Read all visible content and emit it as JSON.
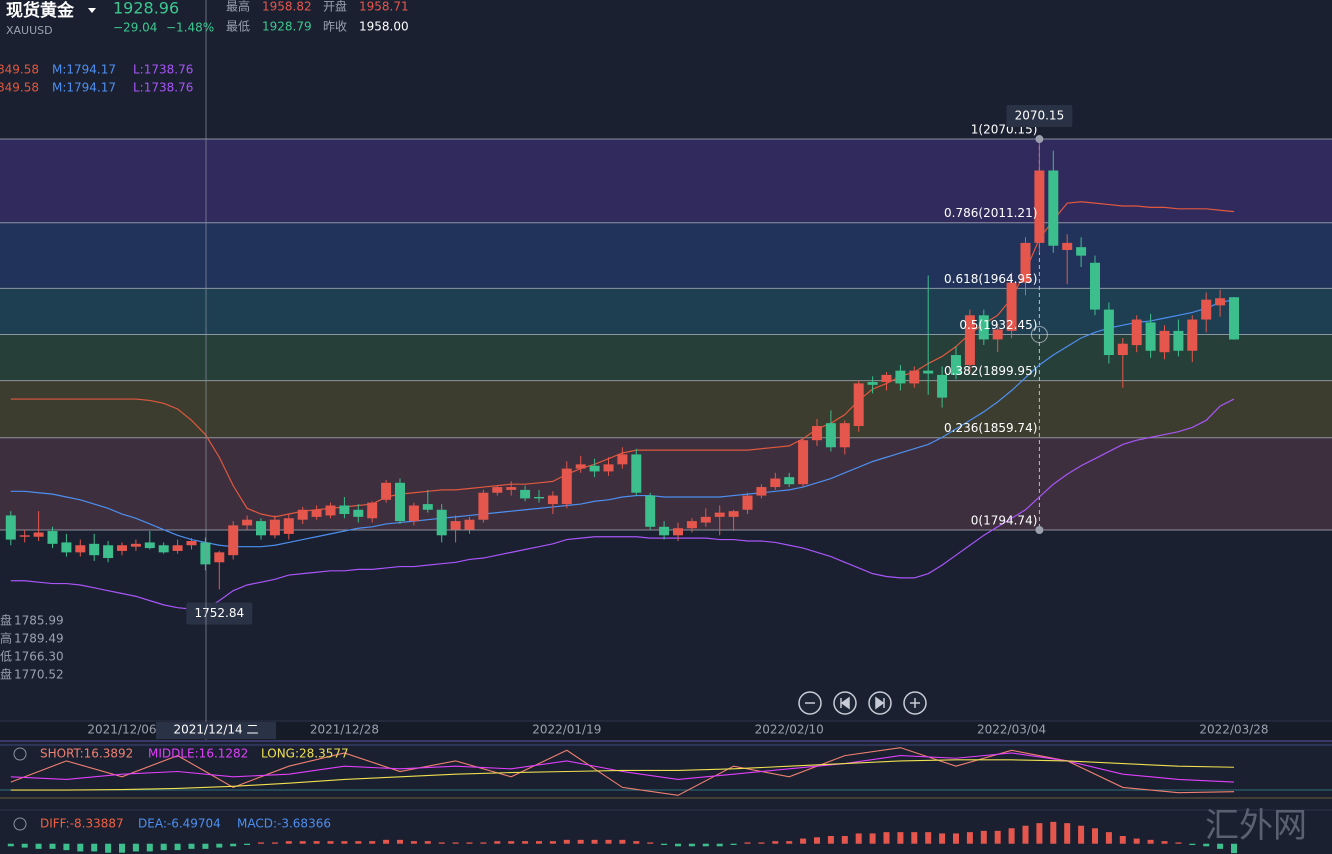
{
  "header": {
    "name": "现货黄金",
    "symbol": "XAUUSD",
    "price": "1928.96",
    "change": "−29.04",
    "change_pct": "−1.48%",
    "stats": [
      {
        "label": "最高",
        "value": "1958.82"
      },
      {
        "label": "开盘",
        "value": "1958.71"
      },
      {
        "label": "最低",
        "value": "1928.79"
      },
      {
        "label": "昨收",
        "value": "1958.00"
      }
    ]
  },
  "band_legend": [
    [
      "849.58",
      "M:1794.17",
      "L:1738.76"
    ],
    [
      "849.58",
      "M:1794.17",
      "L:1738.76"
    ]
  ],
  "ohlc_info": [
    {
      "label": "盘",
      "value": "1785.99"
    },
    {
      "label": "高",
      "value": "1789.49"
    },
    {
      "label": "低",
      "value": "1766.30"
    },
    {
      "label": "盘",
      "value": "1770.52"
    }
  ],
  "crosshair_date": "2021/12/14 二",
  "watermark": "汇外网",
  "chart_data": [
    {
      "type": "candlestick",
      "categories": [
        null,
        null,
        null,
        null,
        null,
        null,
        null,
        null,
        "2021/12/06",
        null,
        null,
        null,
        null,
        null,
        null,
        null,
        null,
        null,
        null,
        null,
        null,
        null,
        null,
        null,
        "2021/12/28",
        null,
        null,
        null,
        null,
        null,
        null,
        null,
        null,
        null,
        null,
        null,
        null,
        null,
        null,
        null,
        "2022/01/19",
        null,
        null,
        null,
        null,
        null,
        null,
        null,
        null,
        null,
        null,
        null,
        null,
        null,
        null,
        null,
        "2022/02/10",
        null,
        null,
        null,
        null,
        null,
        null,
        null,
        null,
        null,
        null,
        null,
        null,
        null,
        null,
        null,
        "2022/03/04",
        null,
        null,
        null,
        null,
        null,
        null,
        null,
        null,
        null,
        null,
        null,
        null,
        null,
        null,
        null,
        "2022/03/28"
      ],
      "open": [
        1805,
        1790,
        1790,
        1794,
        1786,
        1779,
        1785,
        1784,
        1780,
        1783,
        1786,
        1784,
        1780,
        1784,
        1785.99,
        1772,
        1777,
        1798,
        1801,
        1791,
        1792,
        1802,
        1804,
        1805,
        1812,
        1809,
        1803,
        1816,
        1828,
        1801,
        1813,
        1809,
        1795,
        1795,
        1802,
        1821,
        1823,
        1823,
        1818,
        1813,
        1813,
        1838,
        1840,
        1836,
        1841,
        1848,
        1819,
        1797,
        1791,
        1796,
        1800,
        1804,
        1804,
        1809,
        1819,
        1825,
        1832,
        1827,
        1858,
        1870,
        1853,
        1868,
        1899,
        1899,
        1907,
        1898,
        1907,
        1904,
        1918,
        1911,
        1946,
        1929,
        1935,
        1969,
        1997,
        2048,
        1992,
        1994,
        1983,
        1950,
        1918,
        1925,
        1941,
        1920,
        1935,
        1921,
        1943,
        1953,
        1958.71
      ],
      "high": [
        1808,
        1795,
        1808,
        1797,
        1792,
        1788,
        1792,
        1787,
        1786,
        1788,
        1794,
        1786,
        1788,
        1789,
        1789.49,
        1780,
        1801,
        1805,
        1803,
        1805,
        1806,
        1811,
        1812,
        1814,
        1818,
        1813,
        1815,
        1830,
        1831,
        1814,
        1823,
        1813,
        1805,
        1804,
        1823,
        1826,
        1829,
        1826,
        1823,
        1822,
        1843,
        1847,
        1845,
        1846,
        1853,
        1852,
        1821,
        1801,
        1800,
        1803,
        1810,
        1812,
        1809,
        1821,
        1827,
        1835,
        1835,
        1859,
        1873,
        1879,
        1872,
        1900,
        1903,
        1906,
        1911,
        1910,
        1974,
        1910,
        1924,
        1950,
        1950,
        1940,
        1976,
        2001,
        2070.15,
        2062,
        2003,
        2001,
        1988,
        1955,
        1930,
        1946,
        1947,
        1939,
        1943,
        1946,
        1962,
        1964,
        1958.82
      ],
      "low": [
        1784,
        1786,
        1787,
        1782,
        1776,
        1776,
        1773,
        1772,
        1777,
        1780,
        1781,
        1778,
        1778,
        1781,
        1766.3,
        1752.84,
        1774,
        1795,
        1788,
        1789,
        1788,
        1799,
        1802,
        1803,
        1803,
        1800,
        1800,
        1814,
        1799,
        1798,
        1807,
        1786,
        1786,
        1792,
        1800,
        1819,
        1819,
        1815,
        1814,
        1806,
        1810,
        1835,
        1832,
        1833,
        1838,
        1819,
        1795,
        1788,
        1787,
        1793,
        1797,
        1791,
        1794,
        1806,
        1817,
        1823,
        1825,
        1825,
        1854,
        1850,
        1848,
        1864,
        1891,
        1893,
        1893,
        1895,
        1890,
        1881,
        1901,
        1906,
        1925,
        1920,
        1930,
        1960,
        1990,
        1990,
        1968,
        1980,
        1946,
        1912,
        1895,
        1920,
        1916,
        1915,
        1917,
        1913,
        1934,
        1945,
        1928.79
      ],
      "close": [
        1788,
        1791,
        1793,
        1785,
        1779,
        1784,
        1777,
        1775,
        1784,
        1785,
        1782,
        1779,
        1784,
        1787,
        1770.52,
        1779,
        1798,
        1802,
        1791,
        1802,
        1803,
        1809,
        1809,
        1812,
        1806,
        1804,
        1814,
        1828,
        1801,
        1812,
        1809,
        1791,
        1801,
        1802,
        1821,
        1825,
        1825,
        1817,
        1817,
        1819,
        1838,
        1841,
        1836,
        1841,
        1848,
        1821,
        1797,
        1791,
        1796,
        1801,
        1804,
        1807,
        1808,
        1819,
        1825,
        1831,
        1827,
        1858,
        1868,
        1853,
        1870,
        1898,
        1897,
        1904,
        1898,
        1907,
        1905,
        1888,
        1904,
        1946,
        1929,
        1936,
        1969,
        1997,
        2048,
        1995,
        1997,
        1988,
        1950,
        1918,
        1926,
        1943,
        1921,
        1935,
        1921,
        1943,
        1957,
        1958,
        1928.96
      ],
      "up_color": "#e5574d",
      "down_color": "#3cbf8c",
      "lines": [
        {
          "color": "#e0583e",
          "values": [
            1887,
            1887,
            1887,
            1887,
            1887,
            1887,
            1887,
            1887,
            1887,
            1887,
            1886,
            1884,
            1880,
            1872,
            1862,
            1846,
            1826,
            1810,
            1806,
            1804,
            1806,
            1808,
            1809,
            1810,
            1811,
            1812,
            1813,
            1818,
            1820,
            1821,
            1822,
            1823,
            1823,
            1824,
            1825,
            1826,
            1827,
            1827,
            1828,
            1829,
            1834,
            1838,
            1841,
            1845,
            1849,
            1851,
            1851,
            1851,
            1851,
            1851,
            1851,
            1851,
            1851,
            1851,
            1852,
            1853,
            1854,
            1859,
            1866,
            1870,
            1876,
            1886,
            1894,
            1898,
            1903,
            1906,
            1912,
            1917,
            1924,
            1933,
            1940,
            1946,
            1958,
            1977,
            2000,
            2013,
            2025,
            2026,
            2025,
            2024,
            2023,
            2023,
            2022,
            2022,
            2021,
            2021,
            2021,
            2020,
            2019
          ]
        },
        {
          "color": "#4d8ff0",
          "values": [
            1822,
            1822,
            1821,
            1820,
            1818,
            1816,
            1813,
            1810,
            1806,
            1803,
            1799,
            1795,
            1791,
            1788,
            1786,
            1784,
            1783,
            1783,
            1783,
            1784,
            1786,
            1788,
            1790,
            1792,
            1794,
            1796,
            1797,
            1799,
            1800,
            1801,
            1802,
            1803,
            1804,
            1805,
            1806,
            1807,
            1808,
            1809,
            1810,
            1811,
            1812,
            1813,
            1815,
            1816,
            1818,
            1819,
            1819,
            1818,
            1818,
            1818,
            1818,
            1818,
            1819,
            1820,
            1821,
            1822,
            1823,
            1825,
            1828,
            1831,
            1835,
            1839,
            1843,
            1846,
            1849,
            1852,
            1855,
            1860,
            1866,
            1872,
            1878,
            1885,
            1893,
            1902,
            1911,
            1918,
            1924,
            1930,
            1934,
            1937,
            1939,
            1941,
            1942,
            1944,
            1946,
            1948,
            1951,
            1955,
            1957
          ]
        },
        {
          "color": "#a855f7",
          "values": [
            1759,
            1759,
            1758,
            1757,
            1757,
            1756,
            1754,
            1752,
            1750,
            1748,
            1745,
            1742,
            1740,
            1739,
            1739,
            1745,
            1752,
            1756,
            1758,
            1760,
            1763,
            1764,
            1765,
            1766,
            1766,
            1767,
            1767,
            1768,
            1769,
            1769,
            1770,
            1771,
            1772,
            1774,
            1775,
            1777,
            1779,
            1781,
            1783,
            1785,
            1788,
            1789,
            1790,
            1790,
            1790,
            1790,
            1789,
            1789,
            1789,
            1789,
            1789,
            1788,
            1788,
            1787,
            1787,
            1786,
            1784,
            1782,
            1779,
            1776,
            1772,
            1768,
            1764,
            1762,
            1761,
            1761,
            1764,
            1770,
            1777,
            1784,
            1791,
            1797,
            1803,
            1809,
            1818,
            1827,
            1834,
            1840,
            1845,
            1850,
            1855,
            1858,
            1860,
            1862,
            1864,
            1867,
            1872,
            1882,
            1887
          ]
        }
      ],
      "fib": [
        {
          "value": 2070.15,
          "label": "1(2070.15)"
        },
        {
          "value": 2011.21,
          "label": "0.786(2011.21)"
        },
        {
          "value": 1964.95,
          "label": "0.618(1964.95)"
        },
        {
          "value": 1932.45,
          "label": "0.5(1932.45)"
        },
        {
          "value": 1899.95,
          "label": "0.382(1899.95)"
        },
        {
          "value": 1859.74,
          "label": "0.236(1859.74)"
        },
        {
          "value": 1794.74,
          "label": "0(1794.74)"
        }
      ],
      "band_colors": [
        "#3a2d6c",
        "#25396a",
        "#1f4a5c",
        "#2c4a3c",
        "#48472e",
        "#4a3442"
      ],
      "high_marker": 2070.15,
      "low_marker": 1752.84,
      "ylim": [
        1660.9,
        2168.1
      ]
    },
    {
      "type": "line",
      "legend": [
        "SHORT:16.3892",
        "MIDDLE:16.1282",
        "LONG:28.3577"
      ],
      "x": [
        0,
        4,
        8,
        12,
        16,
        20,
        24,
        28,
        32,
        36,
        40,
        44,
        48,
        52,
        56,
        60,
        64,
        68,
        72,
        76,
        80,
        84,
        88
      ],
      "series": [
        {
          "color": "#f08070",
          "values": [
            30,
            70,
            40,
            80,
            20,
            60,
            85,
            50,
            70,
            40,
            90,
            20,
            5,
            60,
            40,
            80,
            95,
            60,
            90,
            70,
            20,
            10,
            12
          ]
        },
        {
          "color": "#e040fb",
          "values": [
            40,
            35,
            45,
            50,
            40,
            45,
            60,
            55,
            60,
            55,
            70,
            50,
            35,
            45,
            55,
            65,
            80,
            75,
            85,
            70,
            45,
            35,
            30
          ]
        },
        {
          "color": "#f0e050",
          "values": [
            15,
            15,
            16,
            18,
            22,
            28,
            35,
            40,
            45,
            48,
            50,
            52,
            52,
            55,
            60,
            65,
            70,
            72,
            72,
            70,
            65,
            60,
            58
          ]
        }
      ],
      "xlim": [
        0,
        88
      ],
      "ylim": [
        0,
        100
      ]
    },
    {
      "type": "bar",
      "legend": [
        "DIFF:-8.33887",
        "DEA:-6.49704",
        "MACD:-3.68366"
      ],
      "legend_colors": [
        "#f06040",
        "#4d8ff0",
        "#4d8ff0"
      ],
      "values": [
        -1,
        -1.5,
        -2,
        -2,
        -2.5,
        -3,
        -3,
        -3.5,
        -3.5,
        -3,
        -3,
        -2.5,
        -2.5,
        -2,
        -2,
        -1.5,
        -1,
        -0.5,
        0.5,
        0.5,
        1,
        1,
        1,
        1,
        1,
        1,
        1,
        1.5,
        1.5,
        1,
        1,
        0.5,
        0.5,
        0.5,
        0.5,
        1,
        1,
        1,
        1,
        1,
        1.5,
        1.5,
        1.5,
        1.5,
        1.5,
        1,
        0.5,
        -0.5,
        -1,
        -1,
        -1,
        -1,
        -0.5,
        0.5,
        0.5,
        1,
        1,
        2,
        2.5,
        3,
        3,
        4,
        4,
        4.5,
        4.5,
        4.5,
        4.5,
        4,
        4,
        4.5,
        5,
        5,
        6,
        7,
        8,
        8.5,
        8,
        7,
        6,
        4.5,
        3,
        2,
        1.5,
        1,
        0.5,
        -0.5,
        -1,
        -2,
        -3.68366
      ],
      "up_color": "#e5574d",
      "down_color": "#3cbf8c",
      "ylim": [
        -4,
        10
      ]
    }
  ]
}
